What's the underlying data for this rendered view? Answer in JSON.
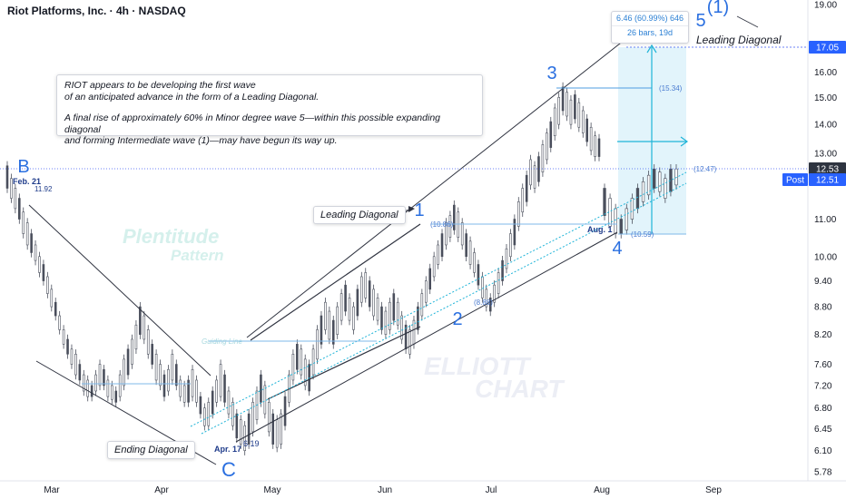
{
  "header": {
    "title": "Riot Platforms, Inc. · 4h · NASDAQ"
  },
  "note": {
    "line1": "RIOT appears to be developing the first wave",
    "line2": "of an anticipated advance in the form of a Leading Diagonal.",
    "line3": "A final rise of approximately 60% in Minor degree wave 5—within this possible expanding diagonal",
    "line4": " and forming Intermediate wave (1)—may have begun its way up."
  },
  "callouts": {
    "leading_diagonal_mid": "Leading Diagonal",
    "leading_diagonal_top": "Leading Diagonal",
    "ending_diagonal": "Ending Diagonal"
  },
  "measure": {
    "line1": "6.46 (60.99%) 646",
    "line2": "26 bars, 19d"
  },
  "watermarks": {
    "plentitude": "Plentitude",
    "pattern": "Pattern",
    "elliott": "ELLIOTT",
    "chart": "CHART",
    "guiding_line": "Guiding Line"
  },
  "colors": {
    "accent": "#2962ff",
    "wave_label": "#2a6fe0",
    "line_dark": "#2f3340",
    "channel_blue": "#4f9de0",
    "cyan": "#1fb4d8",
    "highlight_box": "#e2f4fb",
    "candle": "#4a4f5c",
    "price_tag_dark": "#2e3440",
    "post_tag": "#2962ff"
  },
  "chart_data": {
    "type": "candlestick",
    "ylabel": "",
    "ylim": [
      5.78,
      19.0
    ],
    "y_scale": "log",
    "y_ticks": [
      "19.00",
      "17.05",
      "16.00",
      "15.00",
      "14.00",
      "13.00",
      "12.53",
      "12.51",
      "11.00",
      "10.00",
      "9.40",
      "8.80",
      "8.20",
      "7.60",
      "7.20",
      "6.80",
      "6.45",
      "6.10",
      "5.78"
    ],
    "x_ticks": [
      "Mar",
      "Apr",
      "May",
      "Jun",
      "Jul",
      "Aug",
      "Sep"
    ],
    "wave_labels": [
      {
        "label": "B",
        "date": "Feb 19",
        "value": 12.6
      },
      {
        "label": "C",
        "date": "Apr 19",
        "value": 5.95
      },
      {
        "label": "1",
        "date": "Jun 5",
        "value": 11.5
      },
      {
        "label": "2",
        "date": "Jun 25",
        "value": 8.6
      },
      {
        "label": "3",
        "date": "Jul 18",
        "value": 15.8
      },
      {
        "label": "4",
        "date": "Aug 1",
        "value": 10.35
      },
      {
        "label": "5",
        "date": "Aug 22",
        "value": 18.4
      },
      {
        "label": "(1)",
        "date": "Aug 26",
        "value": 19.0
      }
    ],
    "price_annotations": [
      {
        "text": "Feb. 21",
        "value": 11.92
      },
      {
        "text": "11.92",
        "value": 11.92
      },
      {
        "text": "Apr. 17",
        "value": 6.19
      },
      {
        "text": "6.19",
        "value": 6.19
      },
      {
        "text": "(10.86)",
        "value": 10.86
      },
      {
        "text": "(8.88)",
        "value": 8.88
      },
      {
        "text": "(15.34)",
        "value": 15.34
      },
      {
        "text": "(10.59)",
        "value": 10.59
      },
      {
        "text": "Aug. 1",
        "value": 10.59
      },
      {
        "text": "(12.47)",
        "value": 12.47
      }
    ],
    "price_tags": [
      {
        "text": "17.05",
        "value": 17.05
      },
      {
        "text": "12.53",
        "value": 12.53
      },
      {
        "text": "Post",
        "value": 12.51
      },
      {
        "text": "12.51",
        "value": 12.51
      }
    ],
    "measurement": {
      "change": 6.46,
      "percent": 60.99,
      "ticks": 646,
      "bars": 26,
      "days": 19
    },
    "series": [
      {
        "name": "",
        "points": [
          [
            12.6,
            11.9
          ],
          [
            12.2,
            11.6
          ],
          [
            11.9,
            11.3
          ],
          [
            11.6,
            11.0
          ],
          [
            11.2,
            10.6
          ],
          [
            10.9,
            10.3
          ],
          [
            10.6,
            10.1
          ],
          [
            10.3,
            9.9
          ],
          [
            10.0,
            9.6
          ],
          [
            9.8,
            9.4
          ],
          [
            9.5,
            9.1
          ],
          [
            9.2,
            8.8
          ],
          [
            8.9,
            8.6
          ],
          [
            8.6,
            8.3
          ],
          [
            8.3,
            8.0
          ],
          [
            8.1,
            7.8
          ],
          [
            7.9,
            7.6
          ],
          [
            7.8,
            7.4
          ],
          [
            7.6,
            7.3
          ],
          [
            7.4,
            7.1
          ],
          [
            7.3,
            7.0
          ],
          [
            7.2,
            7.0
          ],
          [
            7.4,
            7.1
          ],
          [
            7.6,
            7.2
          ],
          [
            7.5,
            7.2
          ],
          [
            7.3,
            7.0
          ],
          [
            7.2,
            6.95
          ],
          [
            7.1,
            6.9
          ],
          [
            7.4,
            7.0
          ],
          [
            7.7,
            7.2
          ],
          [
            7.9,
            7.4
          ],
          [
            8.1,
            7.6
          ],
          [
            8.4,
            7.9
          ],
          [
            8.8,
            8.2
          ],
          [
            8.6,
            8.1
          ],
          [
            8.3,
            7.8
          ],
          [
            8.0,
            7.6
          ],
          [
            7.8,
            7.3
          ],
          [
            7.6,
            7.2
          ],
          [
            7.4,
            7.0
          ],
          [
            7.5,
            7.1
          ],
          [
            7.8,
            7.3
          ],
          [
            7.6,
            7.2
          ],
          [
            7.3,
            7.0
          ],
          [
            7.2,
            6.9
          ],
          [
            7.3,
            6.9
          ],
          [
            7.5,
            7.0
          ],
          [
            7.3,
            6.9
          ],
          [
            7.0,
            6.7
          ],
          [
            6.8,
            6.5
          ],
          [
            6.9,
            6.5
          ],
          [
            7.1,
            6.7
          ],
          [
            7.3,
            6.9
          ],
          [
            7.6,
            7.0
          ],
          [
            7.4,
            6.9
          ],
          [
            7.1,
            6.7
          ],
          [
            6.9,
            6.5
          ],
          [
            6.7,
            6.3
          ],
          [
            6.6,
            6.2
          ],
          [
            6.5,
            6.1
          ],
          [
            6.7,
            6.2
          ],
          [
            6.9,
            6.4
          ],
          [
            7.1,
            6.6
          ],
          [
            7.4,
            6.9
          ],
          [
            7.2,
            6.7
          ],
          [
            6.9,
            6.4
          ],
          [
            6.7,
            6.2
          ],
          [
            6.6,
            6.15
          ],
          [
            6.7,
            6.2
          ],
          [
            7.0,
            6.5
          ],
          [
            7.4,
            6.9
          ],
          [
            7.8,
            7.3
          ],
          [
            8.0,
            7.5
          ],
          [
            7.9,
            7.4
          ],
          [
            7.7,
            7.2
          ],
          [
            7.6,
            7.1
          ],
          [
            7.9,
            7.4
          ],
          [
            8.3,
            7.7
          ],
          [
            8.6,
            8.0
          ],
          [
            8.9,
            8.3
          ],
          [
            8.7,
            8.1
          ],
          [
            8.5,
            8.0
          ],
          [
            8.8,
            8.2
          ],
          [
            9.1,
            8.5
          ],
          [
            9.3,
            8.7
          ],
          [
            9.0,
            8.5
          ],
          [
            8.8,
            8.3
          ],
          [
            9.2,
            8.6
          ],
          [
            9.5,
            8.9
          ],
          [
            9.6,
            9.0
          ],
          [
            9.4,
            8.8
          ],
          [
            9.2,
            8.6
          ],
          [
            9.0,
            8.5
          ],
          [
            8.8,
            8.3
          ],
          [
            8.7,
            8.2
          ],
          [
            8.9,
            8.3
          ],
          [
            9.1,
            8.5
          ],
          [
            8.9,
            8.4
          ],
          [
            8.6,
            8.1
          ],
          [
            8.4,
            7.9
          ],
          [
            8.3,
            7.8
          ],
          [
            8.5,
            8.0
          ],
          [
            8.8,
            8.3
          ],
          [
            9.1,
            8.6
          ],
          [
            9.4,
            8.9
          ],
          [
            9.7,
            9.2
          ],
          [
            10.0,
            9.5
          ],
          [
            10.3,
            9.8
          ],
          [
            10.6,
            10.0
          ],
          [
            10.9,
            10.3
          ],
          [
            11.1,
            10.5
          ],
          [
            11.4,
            10.7
          ],
          [
            11.2,
            10.5
          ],
          [
            10.9,
            10.3
          ],
          [
            10.6,
            10.0
          ],
          [
            10.4,
            9.8
          ],
          [
            10.1,
            9.6
          ],
          [
            9.8,
            9.3
          ],
          [
            9.5,
            9.0
          ],
          [
            9.2,
            8.8
          ],
          [
            9.0,
            8.7
          ],
          [
            9.3,
            8.9
          ],
          [
            9.6,
            9.1
          ],
          [
            9.9,
            9.4
          ],
          [
            10.2,
            9.7
          ],
          [
            10.6,
            10.0
          ],
          [
            11.0,
            10.3
          ],
          [
            11.5,
            10.8
          ],
          [
            11.9,
            11.2
          ],
          [
            12.3,
            11.5
          ],
          [
            12.8,
            12.0
          ],
          [
            12.6,
            11.9
          ],
          [
            12.9,
            12.1
          ],
          [
            13.3,
            12.4
          ],
          [
            13.7,
            12.8
          ],
          [
            14.1,
            13.2
          ],
          [
            14.6,
            13.6
          ],
          [
            15.0,
            14.0
          ],
          [
            15.4,
            14.5
          ],
          [
            15.2,
            14.3
          ],
          [
            14.9,
            14.0
          ],
          [
            15.1,
            14.2
          ],
          [
            14.8,
            13.9
          ],
          [
            14.5,
            13.7
          ],
          [
            14.2,
            13.4
          ],
          [
            13.9,
            13.1
          ],
          [
            13.6,
            12.9
          ],
          [
            13.5,
            12.9
          ]
        ]
      },
      {
        "name": "",
        "points": [
          [
            11.9,
            11.1
          ],
          [
            11.6,
            10.8
          ],
          [
            11.3,
            10.6
          ],
          [
            11.0,
            10.6
          ],
          [
            11.3,
            10.7
          ],
          [
            11.6,
            11.0
          ],
          [
            11.9,
            11.3
          ],
          [
            12.1,
            11.5
          ],
          [
            12.3,
            11.7
          ],
          [
            12.5,
            11.9
          ],
          [
            12.4,
            11.8
          ],
          [
            12.2,
            11.6
          ],
          [
            12.5,
            11.8
          ],
          [
            12.5,
            12.0
          ]
        ]
      }
    ]
  }
}
